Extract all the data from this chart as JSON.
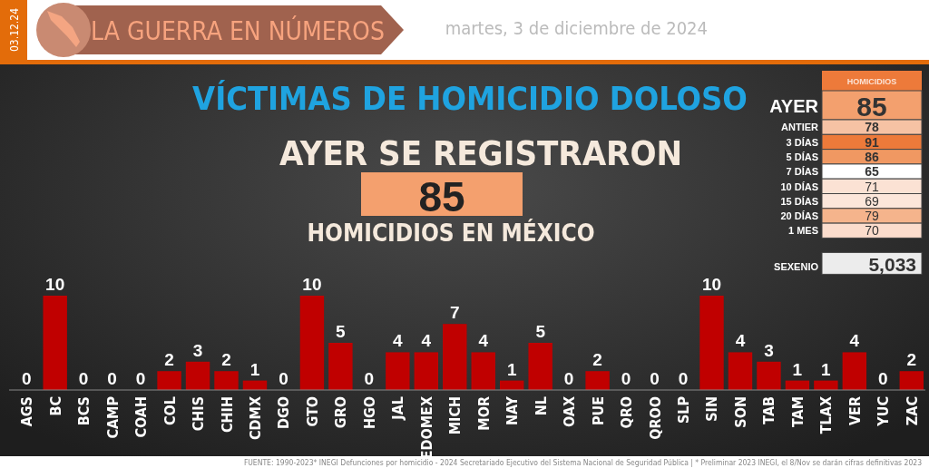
{
  "chart_data": [
    {
      "type": "bar",
      "title": "VÍCTIMAS DE HOMICIDIO DOLOSO",
      "subtitle": "AYER SE REGISTRARON",
      "annotations": [
        "03.12.24",
        "LA GUERRA EN NÚMEROS",
        "martes, 3 de diciembre de 2024",
        "85",
        "HOMICIDIOS EN MÉXICO",
        "FUENTE: 1990-2023* INEGI Defunciones por homicidio - 2024 Secretariado Ejecutivo del Sistema Nacional de Seguridad Pública | * Preliminar 2023 INEGI, el 8/Nov se darán cifras definitivas 2023"
      ],
      "categories": [
        "AGS",
        "BC",
        "BCS",
        "CAMP",
        "COAH",
        "COL",
        "CHIS",
        "CHIH",
        "CDMX",
        "DGO",
        "GTO",
        "GRO",
        "HGO",
        "JAL",
        "EDOMEX",
        "MICH",
        "MOR",
        "NAY",
        "NL",
        "OAX",
        "PUE",
        "QRO",
        "QROO",
        "SLP",
        "SIN",
        "SON",
        "TAB",
        "TAM",
        "TLAX",
        "VER",
        "YUC",
        "ZAC"
      ],
      "values": [
        0,
        10,
        0,
        0,
        0,
        2,
        3,
        2,
        1,
        0,
        10,
        5,
        0,
        4,
        4,
        7,
        4,
        1,
        5,
        0,
        2,
        0,
        0,
        0,
        10,
        4,
        3,
        1,
        1,
        4,
        0,
        2
      ],
      "color": "#c00000",
      "data_labels": true
    },
    {
      "type": "other",
      "title": "HOMICIDIOS",
      "categories": [
        "AYER",
        "ANTIER",
        "3 DÍAS",
        "5 DÍAS",
        "7 DÍAS",
        "10 DÍAS",
        "15 DÍAS",
        "20 DÍAS",
        "1 MES",
        "SEXENIO"
      ],
      "values": [
        85,
        78,
        91,
        86,
        65,
        71,
        69,
        79,
        70,
        5033
      ],
      "value_labels": [
        "85",
        "78",
        "91",
        "86",
        "65",
        "71",
        "69",
        "79",
        "70",
        "5,033"
      ],
      "colors": [
        "#f3a06e",
        "#f6c2a4",
        "#ed7a3a",
        "#f09862",
        "#ffffff",
        "#fbe2d4",
        "#fce6da",
        "#f5b48c",
        "#fbdccc",
        "#ececec"
      ]
    }
  ]
}
